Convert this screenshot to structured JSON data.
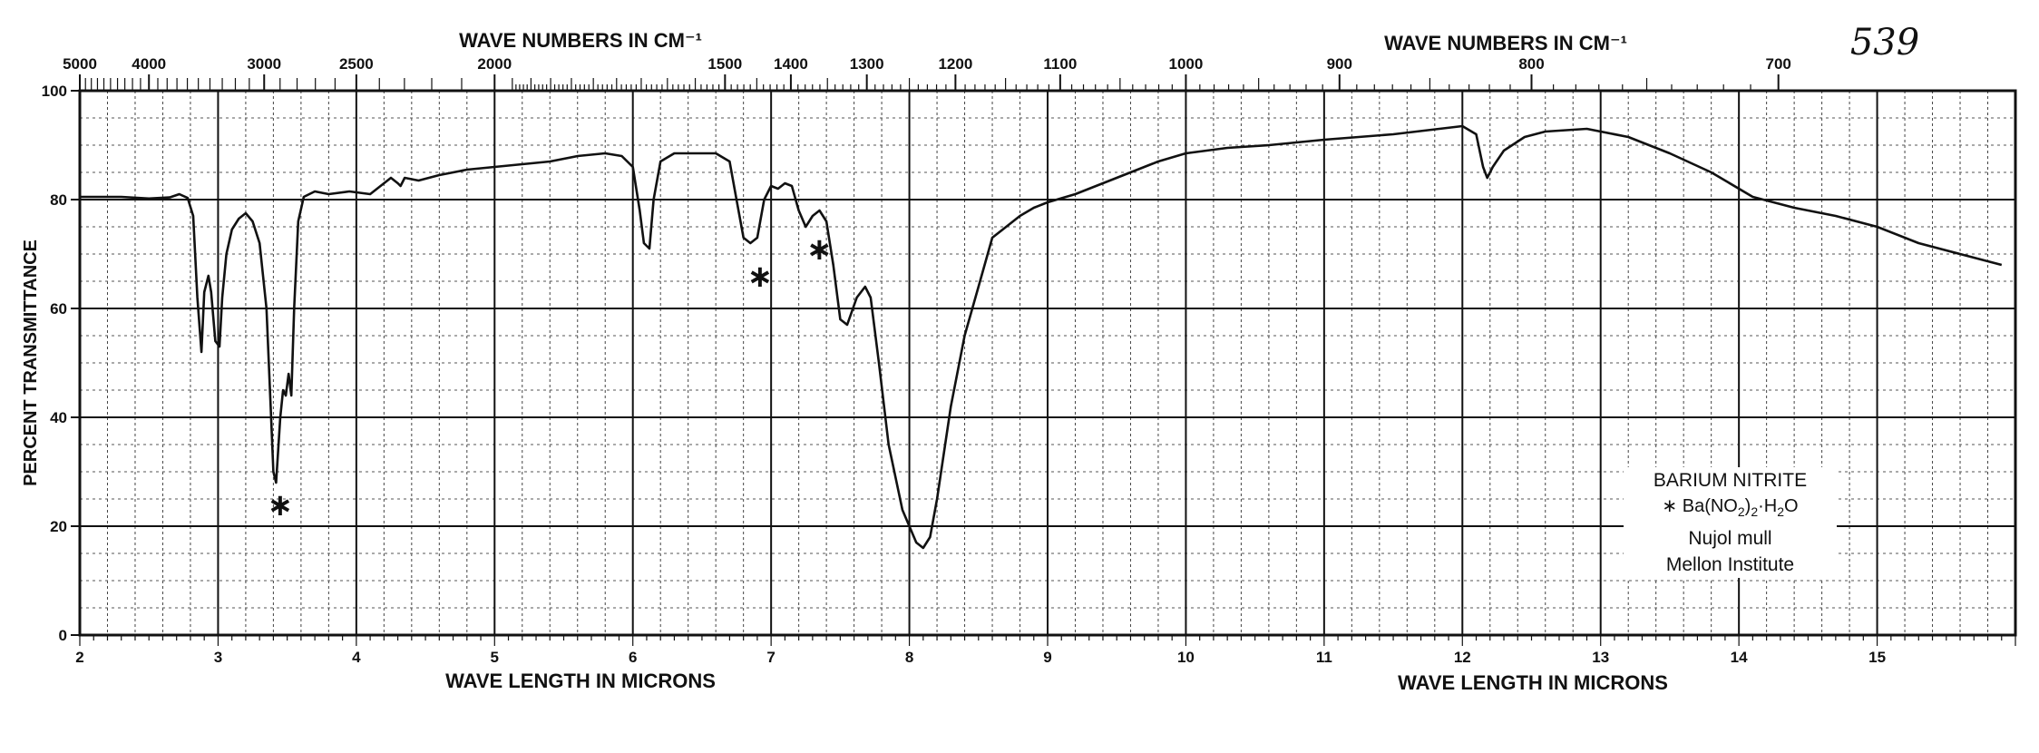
{
  "sheet_number": "539",
  "top_axis_title": "WAVE NUMBERS IN CM⁻¹",
  "bottom_axis_title": "WAVE LENGTH IN MICRONS",
  "sample": {
    "name": "BARIUM NITRITE",
    "marker": "∗",
    "formula_parts": [
      "Ba(NO",
      "2",
      ")",
      "2",
      "·H",
      "2",
      "O"
    ],
    "medium": "Nujol mull",
    "source": "Mellon Institute"
  },
  "chart_data": {
    "type": "line",
    "title": "",
    "xlabel": "WAVE LENGTH IN MICRONS",
    "ylabel": "PERCENT TRANSMITTANCE",
    "x2label": "WAVE NUMBERS IN CM⁻¹",
    "xlim": [
      2,
      16
    ],
    "ylim": [
      0,
      100
    ],
    "x_ticks": [
      2,
      3,
      4,
      5,
      6,
      7,
      8,
      9,
      10,
      11,
      12,
      13,
      14,
      15
    ],
    "x_tick_labels": [
      "2",
      "3",
      "4",
      "5",
      "6",
      "7",
      "8",
      "9",
      "10",
      "11",
      "12",
      "13",
      "14",
      "15"
    ],
    "y_ticks": [
      0,
      20,
      40,
      60,
      80,
      100
    ],
    "y_tick_labels": [
      "0",
      "20",
      "40",
      "60",
      "80",
      "100"
    ],
    "wavenumber_ticks": [
      5000,
      4000,
      3000,
      2500,
      2000,
      1500,
      1400,
      1300,
      1200,
      1100,
      1000,
      900,
      800,
      700
    ],
    "wavenumber_tick_labels": [
      "5000",
      "4000",
      "3000",
      "2500",
      "2000",
      "1500",
      "1400",
      "1300",
      "1200",
      "1100",
      "1000",
      "900",
      "800",
      "700"
    ],
    "grid": true,
    "series": [
      {
        "x": [
          2.0,
          2.3,
          2.5,
          2.65,
          2.72,
          2.78,
          2.82,
          2.85,
          2.88,
          2.9,
          2.93,
          2.95,
          2.98,
          3.01,
          3.03,
          3.06,
          3.1,
          3.15,
          3.2,
          3.25,
          3.3,
          3.35,
          3.38,
          3.4,
          3.42,
          3.45,
          3.47,
          3.49,
          3.51,
          3.53,
          3.55,
          3.58,
          3.62,
          3.7,
          3.8,
          3.95,
          4.1,
          4.25,
          4.3,
          4.32,
          4.35,
          4.45,
          4.6,
          4.8,
          5.0,
          5.2,
          5.4,
          5.6,
          5.8,
          5.92,
          6.0,
          6.05,
          6.08,
          6.12,
          6.15,
          6.2,
          6.3,
          6.45,
          6.6,
          6.7,
          6.75,
          6.8,
          6.85,
          6.9,
          6.95,
          7.0,
          7.05,
          7.1,
          7.15,
          7.2,
          7.25,
          7.3,
          7.35,
          7.4,
          7.45,
          7.5,
          7.55,
          7.62,
          7.68,
          7.72,
          7.78,
          7.85,
          7.95,
          8.05,
          8.1,
          8.15,
          8.2,
          8.3,
          8.4,
          8.5,
          8.6,
          8.7,
          8.8,
          8.9,
          9.0,
          9.2,
          9.5,
          9.8,
          10.0,
          10.3,
          10.6,
          11.0,
          11.5,
          12.0,
          12.1,
          12.15,
          12.18,
          12.22,
          12.3,
          12.45,
          12.6,
          12.9,
          13.2,
          13.5,
          13.8,
          14.1,
          14.4,
          14.7,
          15.0,
          15.3,
          15.6,
          15.9
        ],
        "y": [
          80.5,
          80.5,
          80.2,
          80.4,
          81.0,
          80.3,
          77.0,
          62.0,
          52.0,
          63.0,
          66.0,
          63.0,
          54.0,
          53.0,
          62.0,
          70.0,
          74.5,
          76.5,
          77.5,
          76.0,
          72.0,
          60.0,
          42.0,
          30.0,
          28.0,
          40.0,
          45.0,
          44.0,
          48.0,
          44.0,
          60.0,
          76.0,
          80.5,
          81.5,
          81.0,
          81.5,
          81.0,
          84.0,
          83.0,
          82.5,
          84.0,
          83.5,
          84.5,
          85.5,
          86.0,
          86.5,
          87.0,
          88.0,
          88.5,
          88.0,
          86.0,
          78.0,
          72.0,
          71.0,
          80.0,
          87.0,
          88.5,
          88.5,
          88.5,
          87.0,
          80.0,
          73.0,
          72.0,
          73.0,
          80.0,
          82.5,
          82.0,
          83.0,
          82.5,
          78.0,
          75.0,
          77.0,
          78.0,
          76.0,
          68.0,
          58.0,
          57.0,
          62.0,
          64.0,
          62.0,
          50.0,
          35.0,
          23.0,
          17.0,
          16.0,
          18.0,
          25.0,
          42.0,
          55.0,
          64.0,
          73.0,
          75.0,
          77.0,
          78.5,
          79.5,
          81.0,
          84.0,
          87.0,
          88.5,
          89.5,
          90.0,
          91.0,
          92.0,
          93.5,
          92.0,
          86.0,
          84.0,
          86.0,
          89.0,
          91.5,
          92.5,
          93.0,
          91.5,
          88.5,
          85.0,
          80.5,
          78.5,
          77.0,
          75.0,
          72.0,
          70.0,
          68.0
        ]
      }
    ],
    "annotations": [
      {
        "text": "∗",
        "x": 3.45,
        "y": 24
      },
      {
        "text": "∗",
        "x": 6.92,
        "y": 66
      },
      {
        "text": "∗",
        "x": 7.35,
        "y": 71
      }
    ],
    "colors": {
      "curve": "#111111",
      "grid": "#222222"
    }
  }
}
